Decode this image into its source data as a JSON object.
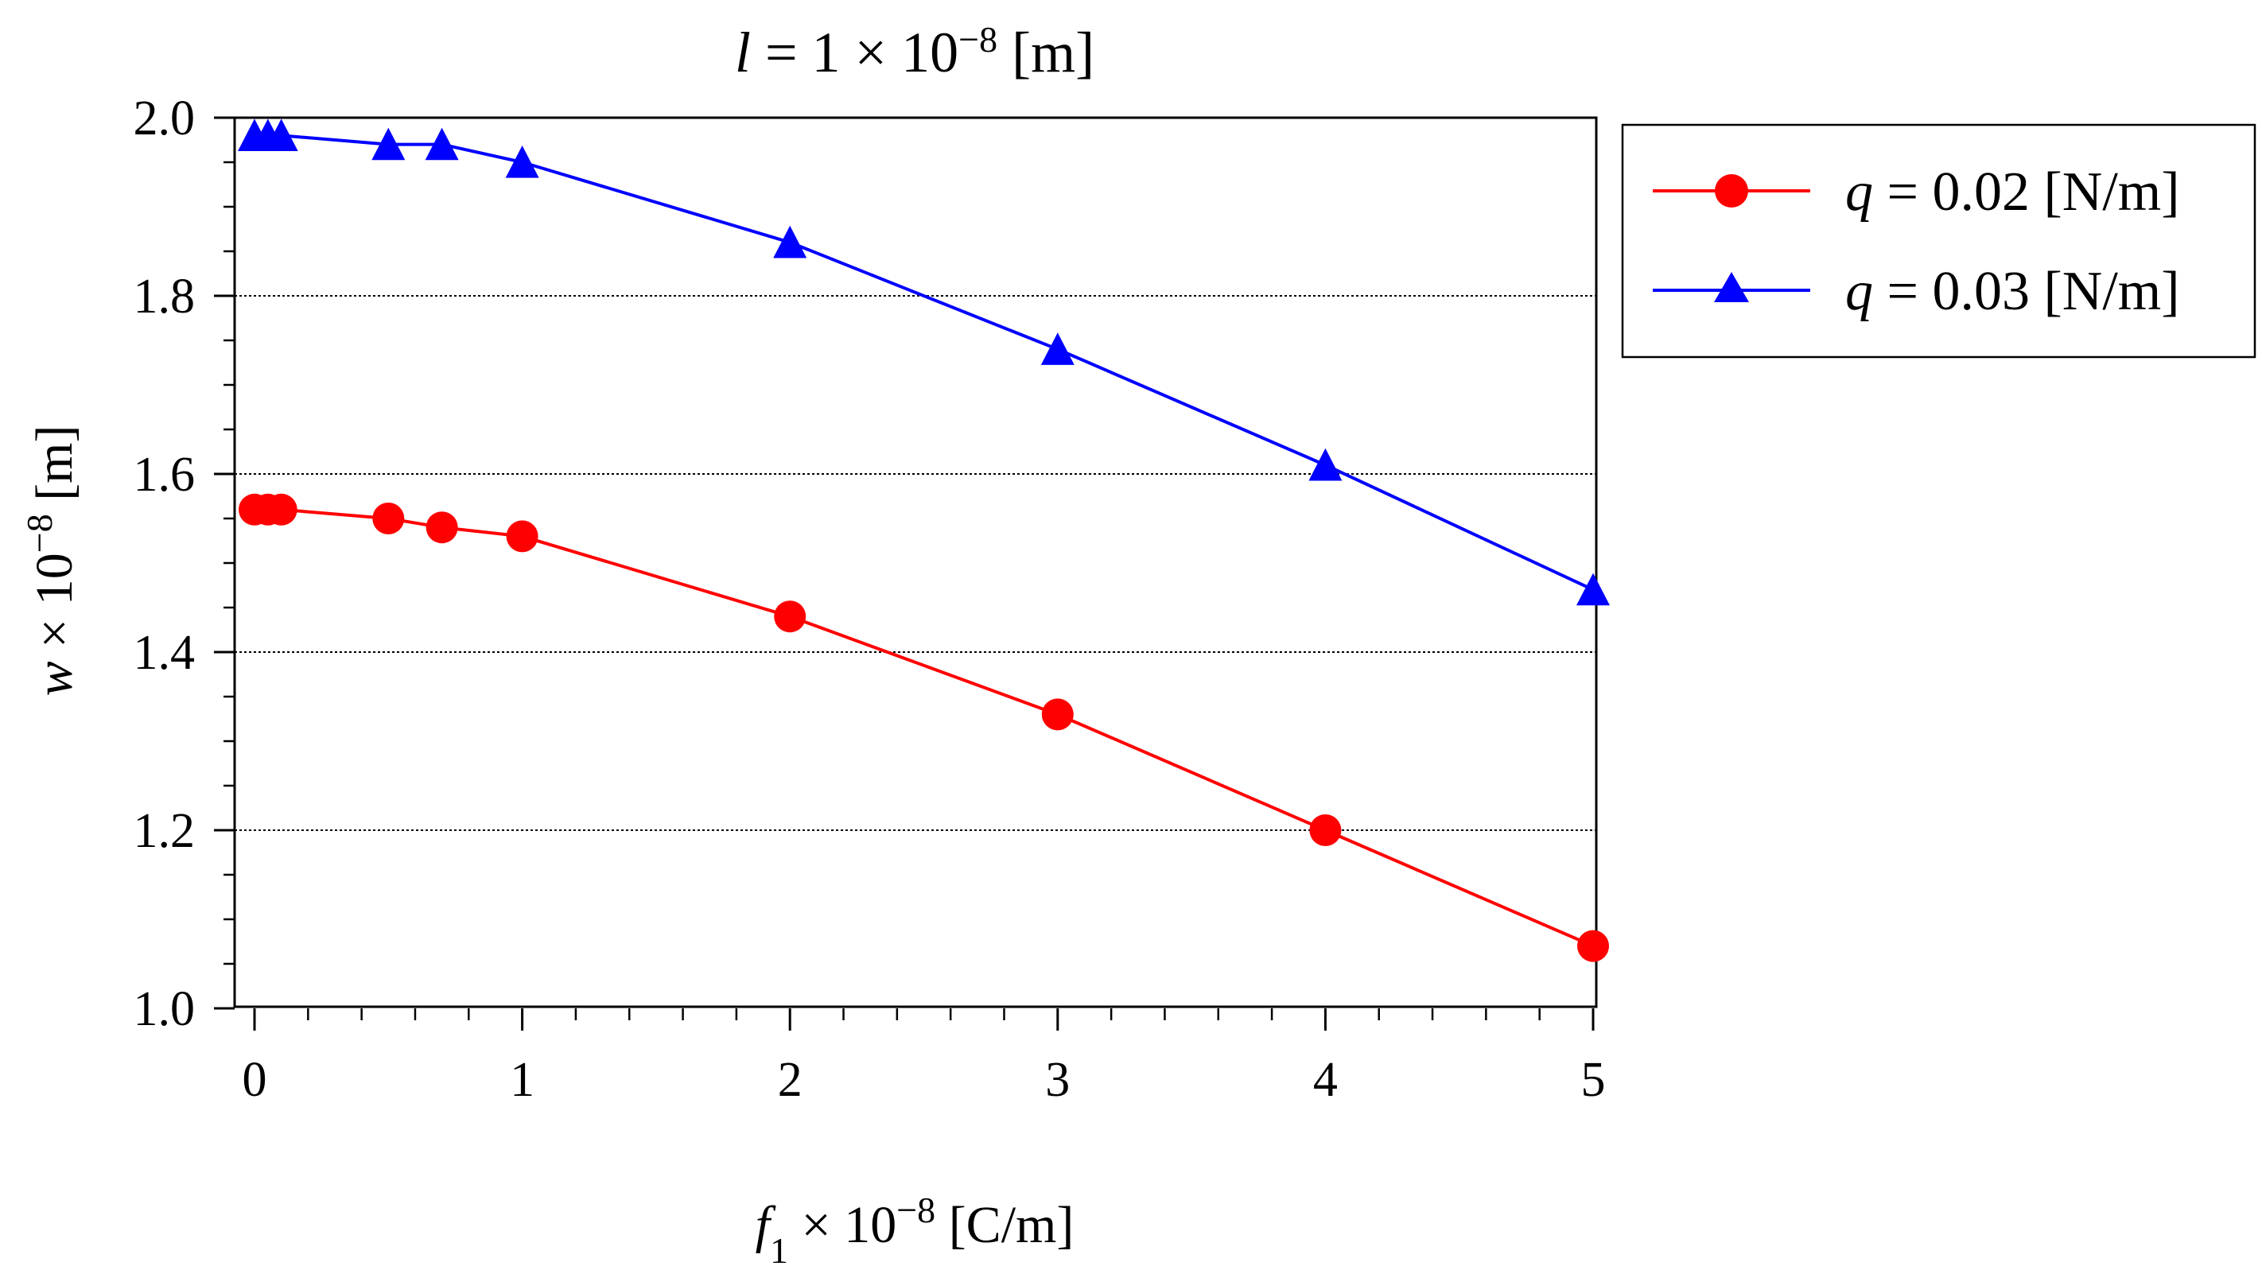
{
  "chart_data": {
    "type": "line",
    "title": {
      "var": "l",
      "prefix": " = 1 × 10",
      "exp": "−8",
      "suffix": " [m]"
    },
    "xlabel": {
      "var": "f",
      "sub": "1",
      "mid": " × 10",
      "exp": "−8",
      "suffix": "  [C/m]"
    },
    "ylabel": {
      "var": "w",
      "mid": " × 10",
      "exp": "−8",
      "suffix": "  [m]"
    },
    "xlim": [
      0,
      5
    ],
    "ylim": [
      1.0,
      2.0
    ],
    "x_ticks": [
      0,
      1,
      2,
      3,
      4,
      5
    ],
    "x_tick_labels": [
      "0",
      "1",
      "2",
      "3",
      "4",
      "5"
    ],
    "y_ticks": [
      1.0,
      1.2,
      1.4,
      1.6,
      1.8,
      2.0
    ],
    "y_tick_labels": [
      "1.0",
      "1.2",
      "1.4",
      "1.6",
      "1.8",
      "2.0"
    ],
    "grid": "horizontal dotted",
    "legend_position": "top-right outside",
    "series": [
      {
        "name": "q = 0.02 [N/m]",
        "label_var": "q",
        "label_rest": " = 0.02 [N/m]",
        "color": "#ff0000",
        "marker": "circle",
        "x": [
          0,
          0.05,
          0.1,
          0.5,
          0.7,
          1,
          2,
          3,
          4,
          5
        ],
        "y": [
          1.56,
          1.56,
          1.56,
          1.55,
          1.54,
          1.53,
          1.44,
          1.33,
          1.2,
          1.07
        ]
      },
      {
        "name": "q = 0.03 [N/m]",
        "label_var": "q",
        "label_rest": " = 0.03 [N/m]",
        "color": "#0000ff",
        "marker": "triangle",
        "x": [
          0,
          0.05,
          0.1,
          0.5,
          0.7,
          1,
          2,
          3,
          4,
          5
        ],
        "y": [
          1.98,
          1.98,
          1.98,
          1.97,
          1.97,
          1.95,
          1.86,
          1.74,
          1.61,
          1.47
        ]
      }
    ]
  }
}
